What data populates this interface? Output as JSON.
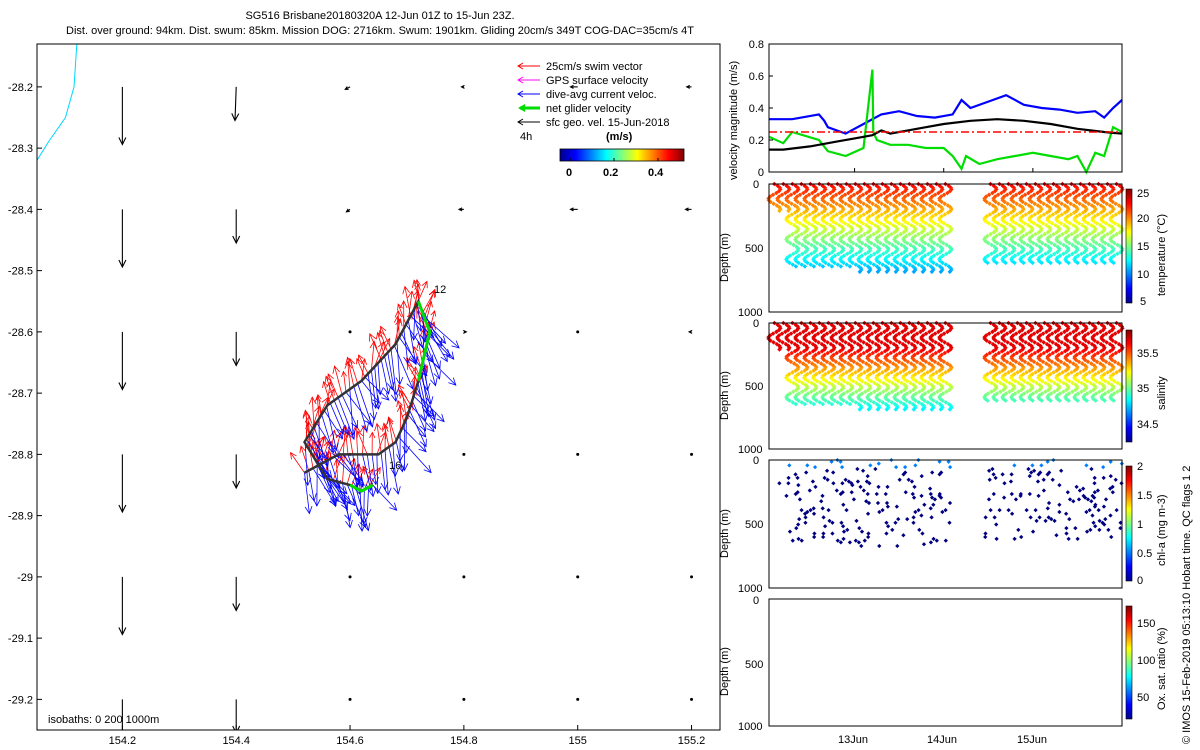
{
  "title": {
    "line1": "SG516 Brisbane20180320A 12-Jun 01Z to 15-Jun 23Z.",
    "line2": "Dist. over ground: 94km. Dist. swum: 85km. Mission DOG: 2716km. Swum: 1901km. Gliding 20cm/s 349T COG-DAC=35cm/s 4T"
  },
  "colors": {
    "swim": "#ff0000",
    "gps": "#ff00ff",
    "dac": "#0000ff",
    "net": "#00dd00",
    "geo": "#000000",
    "coast": "#00d8ff",
    "refline": "#ff0000"
  },
  "chart_data": [
    {
      "type": "scatter",
      "name": "map",
      "xlabel": "",
      "ylabel": "",
      "xlim": [
        154.05,
        155.25
      ],
      "ylim": [
        -29.25,
        -28.13
      ],
      "x_ticks": [
        154.2,
        154.4,
        154.6,
        154.8,
        155,
        155.2
      ],
      "x_tick_labels": [
        "154.2",
        "154.4",
        "154.6",
        "154.8",
        "155",
        "155.2"
      ],
      "y_ticks": [
        -28.2,
        -28.3,
        -28.4,
        -28.5,
        -28.6,
        -28.7,
        -28.8,
        -28.9,
        -29,
        -29.1,
        -29.2
      ],
      "y_tick_labels": [
        "-28.2",
        "-28.3",
        "-28.4",
        "-28.5",
        "-28.6",
        "-28.7",
        "-28.8",
        "-28.9",
        "-29",
        "-29.1",
        "-29.2"
      ],
      "legend": {
        "placement": "top-right",
        "entries": [
          "25cm/s swim vector",
          "GPS surface velocity",
          "dive-avg current veloc.",
          "net glider velocity",
          "sfc geo. vel. 15-Jun-2018"
        ],
        "interval_label": "4h",
        "colorbar_title": "(m/s)",
        "colorbar_ticks": [
          "0",
          "0.2",
          "0.4"
        ]
      },
      "isobaths_label": "isobaths: 0    200  1000m",
      "track_labels": [
        "12",
        "16"
      ],
      "geo_grid": {
        "lons": [
          154.2,
          154.4,
          154.6,
          154.8,
          155.0,
          155.2
        ],
        "lats": [
          -28.2,
          -28.4,
          -28.6,
          -28.8,
          -29.0,
          -29.2
        ],
        "u": [
          [
            0.0,
            -0.01,
            -0.04,
            -0.02,
            -0.06,
            -0.04
          ],
          [
            0.0,
            0.0,
            -0.03,
            -0.04,
            -0.06,
            -0.05
          ],
          [
            0.0,
            0.0,
            0.0,
            0.02,
            -0.01,
            -0.02
          ],
          [
            0.0,
            0.0,
            0.0,
            0.0,
            0.0,
            0.0
          ],
          [
            0.0,
            0.0,
            0.0,
            0.0,
            0.0,
            0.0
          ],
          [
            0.0,
            0.0,
            0.0,
            0.0,
            0.0,
            0.0
          ]
        ],
        "v": [
          [
            -0.48,
            -0.28,
            -0.02,
            0.0,
            0.0,
            0.0
          ],
          [
            -0.48,
            -0.28,
            -0.02,
            0.0,
            0.0,
            0.0
          ],
          [
            -0.48,
            -0.28,
            0.0,
            0.0,
            0.0,
            0.0
          ],
          [
            -0.48,
            -0.28,
            0.0,
            0.0,
            0.0,
            0.0
          ],
          [
            -0.48,
            -0.28,
            0.0,
            0.0,
            0.0,
            0.0
          ],
          [
            -0.48,
            -0.28,
            0.0,
            0.0,
            0.0,
            0.0
          ]
        ]
      },
      "track": {
        "lon": [
          154.52,
          154.58,
          154.62,
          154.65,
          154.68,
          154.7,
          154.72,
          154.74,
          154.72,
          154.68,
          154.62,
          154.56,
          154.52,
          154.56,
          154.6,
          154.62,
          154.64
        ],
        "lat": [
          -28.83,
          -28.8,
          -28.8,
          -28.8,
          -28.78,
          -28.74,
          -28.68,
          -28.6,
          -28.55,
          -28.62,
          -28.68,
          -28.72,
          -28.78,
          -28.84,
          -28.85,
          -28.86,
          -28.85
        ]
      }
    },
    {
      "type": "line",
      "name": "velocity",
      "ylabel": "velocity magnitude (m/s)",
      "ylim": [
        0,
        0.8
      ],
      "y_ticks": [
        0,
        0.2,
        0.4,
        0.6,
        0.8
      ],
      "y_tick_labels": [
        "0",
        "0.2",
        "0.4",
        "0.6",
        "0.8"
      ],
      "xlim": [
        12.04,
        16.0
      ],
      "x_ticks": [
        13,
        14,
        15
      ],
      "series": [
        {
          "name": "dive-avg current",
          "color": "#0000ff",
          "x": [
            12.04,
            12.3,
            12.6,
            12.66,
            12.7,
            12.9,
            13.1,
            13.3,
            13.5,
            13.7,
            13.9,
            14.1,
            14.2,
            14.3,
            14.5,
            14.7,
            14.9,
            15.1,
            15.3,
            15.5,
            15.7,
            15.8,
            15.9,
            16.0
          ],
          "y": [
            0.33,
            0.33,
            0.36,
            0.32,
            0.28,
            0.24,
            0.3,
            0.36,
            0.38,
            0.35,
            0.34,
            0.36,
            0.45,
            0.4,
            0.44,
            0.48,
            0.42,
            0.4,
            0.39,
            0.37,
            0.38,
            0.34,
            0.4,
            0.45
          ]
        },
        {
          "name": "net glider velocity",
          "color": "#00dd00",
          "x": [
            12.04,
            12.2,
            12.3,
            12.6,
            12.7,
            12.9,
            13.1,
            13.2,
            13.21,
            13.25,
            13.4,
            13.6,
            13.8,
            14.0,
            14.1,
            14.2,
            14.25,
            14.4,
            14.6,
            14.8,
            15.0,
            15.2,
            15.4,
            15.5,
            15.6,
            15.7,
            15.8,
            15.9,
            16.0
          ],
          "y": [
            0.22,
            0.18,
            0.25,
            0.2,
            0.13,
            0.1,
            0.15,
            0.64,
            0.25,
            0.2,
            0.17,
            0.17,
            0.15,
            0.15,
            0.1,
            0.02,
            0.1,
            0.05,
            0.08,
            0.1,
            0.12,
            0.1,
            0.08,
            0.1,
            0.0,
            0.12,
            0.1,
            0.28,
            0.25
          ]
        },
        {
          "name": "sfc geo velocity",
          "color": "#000000",
          "x": [
            12.04,
            12.2,
            12.5,
            12.8,
            13.0,
            13.2,
            13.3,
            13.4,
            13.6,
            13.8,
            14.0,
            14.3,
            14.6,
            14.9,
            15.2,
            15.5,
            15.8,
            16.0
          ],
          "y": [
            0.14,
            0.14,
            0.16,
            0.19,
            0.21,
            0.23,
            0.26,
            0.24,
            0.26,
            0.28,
            0.3,
            0.32,
            0.33,
            0.32,
            0.3,
            0.27,
            0.25,
            0.24
          ]
        },
        {
          "name": "reference 0.25",
          "color": "#ff0000",
          "x": [
            12.04,
            16.0
          ],
          "y": [
            0.25,
            0.25
          ]
        }
      ]
    },
    {
      "type": "scatter",
      "name": "temperature",
      "ylabel": "Depth (m)",
      "ylim": [
        0,
        1000
      ],
      "y_tick_labels": [
        "0",
        "500",
        "1000"
      ],
      "colorbar_label": "temperature (°C)",
      "colorbar_range": [
        5,
        25
      ],
      "colorbar_ticks": [
        "25",
        "20",
        "15",
        "10",
        "5"
      ]
    },
    {
      "type": "scatter",
      "name": "salinity",
      "ylabel": "Depth (m)",
      "ylim": [
        0,
        1000
      ],
      "y_tick_labels": [
        "0",
        "500",
        "1000"
      ],
      "colorbar_label": "salinity",
      "colorbar_range": [
        34.3,
        35.8
      ],
      "colorbar_ticks": [
        "35.5",
        "35",
        "34.5"
      ]
    },
    {
      "type": "scatter",
      "name": "chl-a",
      "ylabel": "Depth (m)",
      "ylim": [
        0,
        1000
      ],
      "y_tick_labels": [
        "0",
        "500",
        "1000"
      ],
      "colorbar_label": "chl-a (mg m-3)",
      "colorbar_range": [
        0,
        2
      ],
      "colorbar_ticks": [
        "2",
        "1.5",
        "1",
        "0.5",
        "0"
      ]
    },
    {
      "type": "scatter",
      "name": "oxygen",
      "ylabel": "Depth (m)",
      "ylim": [
        0,
        1000
      ],
      "y_tick_labels": [
        "0",
        "500",
        "1000"
      ],
      "colorbar_label": "Ox. sat. ratio (%)",
      "colorbar_range": [
        10,
        170
      ],
      "colorbar_ticks": [
        "150",
        "100",
        "50"
      ],
      "x_tick_labels": [
        "13Jun",
        "14Jun",
        "15Jun"
      ]
    }
  ],
  "footer": "© IMOS 15-Feb-2019 05:13:10 Hobart time. QC flags 1  2"
}
